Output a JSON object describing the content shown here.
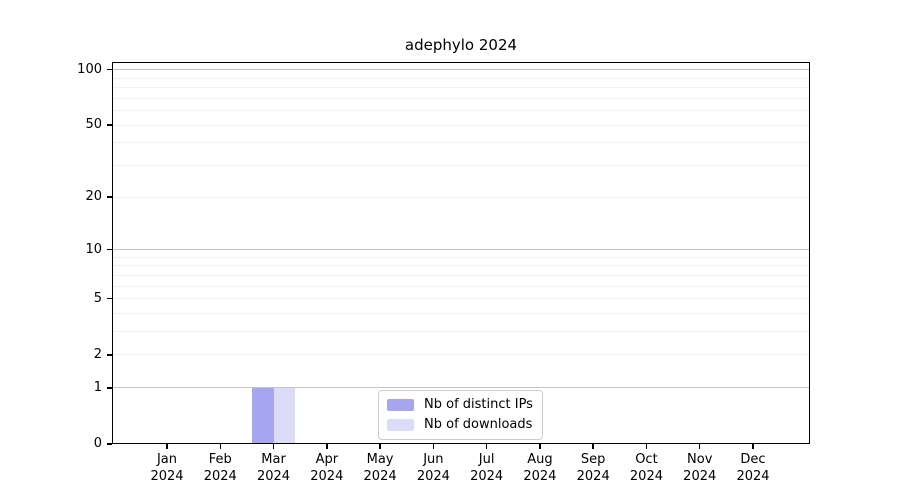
{
  "figure": {
    "title": "adephylo 2024"
  },
  "legend": {
    "items": [
      {
        "label": "Nb of distinct IPs"
      },
      {
        "label": "Nb of downloads"
      }
    ]
  },
  "colors": {
    "distinct_ips": "#a6a6f0",
    "downloads": "#dcdcf8",
    "grid_major": "#c4c4c4",
    "grid_minor": "#f0f0f0",
    "axis": "#000000",
    "legend_border": "#cccccc",
    "text": "#000000"
  },
  "chart_data": {
    "type": "bar",
    "title": "adephylo 2024",
    "categories": [
      "Jan",
      "Feb",
      "Mar",
      "Apr",
      "May",
      "Jun",
      "Jul",
      "Aug",
      "Sep",
      "Oct",
      "Nov",
      "Dec"
    ],
    "year_label": "2024",
    "series": [
      {
        "name": "Nb of distinct IPs",
        "color": "#a6a6f0",
        "values": [
          0,
          0,
          1,
          0,
          0,
          0,
          0,
          0,
          0,
          0,
          0,
          0
        ]
      },
      {
        "name": "Nb of downloads",
        "color": "#dcdcf8",
        "values": [
          0,
          0,
          1,
          0,
          0,
          0,
          0,
          0,
          0,
          0,
          0,
          0
        ]
      }
    ],
    "xlabel": "",
    "ylabel": "",
    "yscale": "log1p",
    "ylim": [
      0,
      110
    ],
    "ytick_labels": [
      0,
      1,
      2,
      5,
      10,
      20,
      50,
      100
    ],
    "grid_major_lines": [
      1,
      10,
      100
    ],
    "grid_minor_lines": [
      2,
      3,
      4,
      5,
      6,
      7,
      8,
      9,
      20,
      30,
      40,
      50,
      60,
      70,
      80,
      90
    ],
    "grid": true,
    "legend_position": "lower center"
  }
}
